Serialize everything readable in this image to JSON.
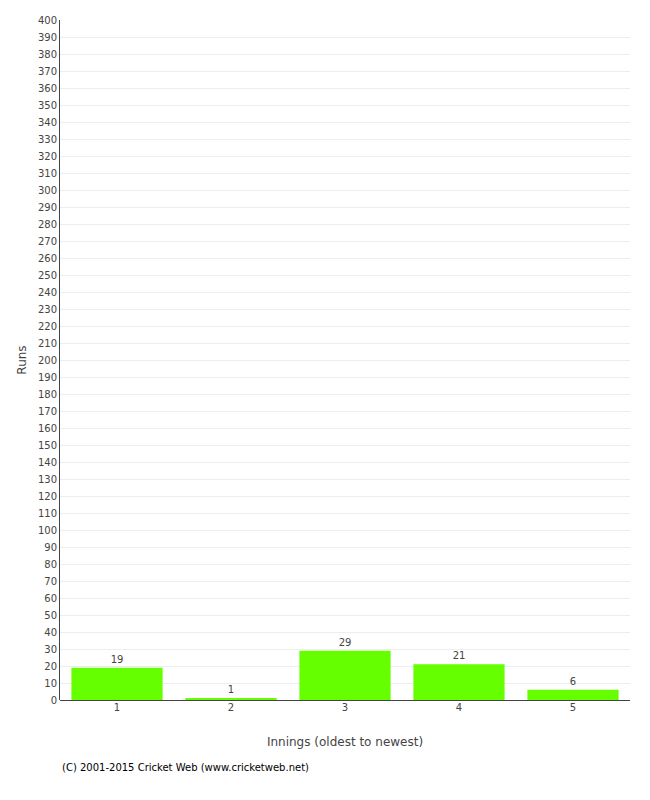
{
  "chart_data": {
    "type": "bar",
    "categories": [
      "1",
      "2",
      "3",
      "4",
      "5"
    ],
    "values": [
      19,
      1,
      29,
      21,
      6
    ],
    "color": "#66ff00",
    "xlabel": "Innings (oldest to newest)",
    "ylabel": "Runs",
    "ylim": [
      0,
      400
    ],
    "yticks": [
      0,
      10,
      20,
      30,
      40,
      50,
      60,
      70,
      80,
      90,
      100,
      110,
      120,
      130,
      140,
      150,
      160,
      170,
      180,
      190,
      200,
      210,
      220,
      230,
      240,
      250,
      260,
      270,
      280,
      290,
      300,
      310,
      320,
      330,
      340,
      350,
      360,
      370,
      380,
      390,
      400
    ],
    "grid": true,
    "data_labels": true,
    "annotations": [
      "(C) 2001-2015 Cricket Web (www.cricketweb.net)"
    ]
  }
}
